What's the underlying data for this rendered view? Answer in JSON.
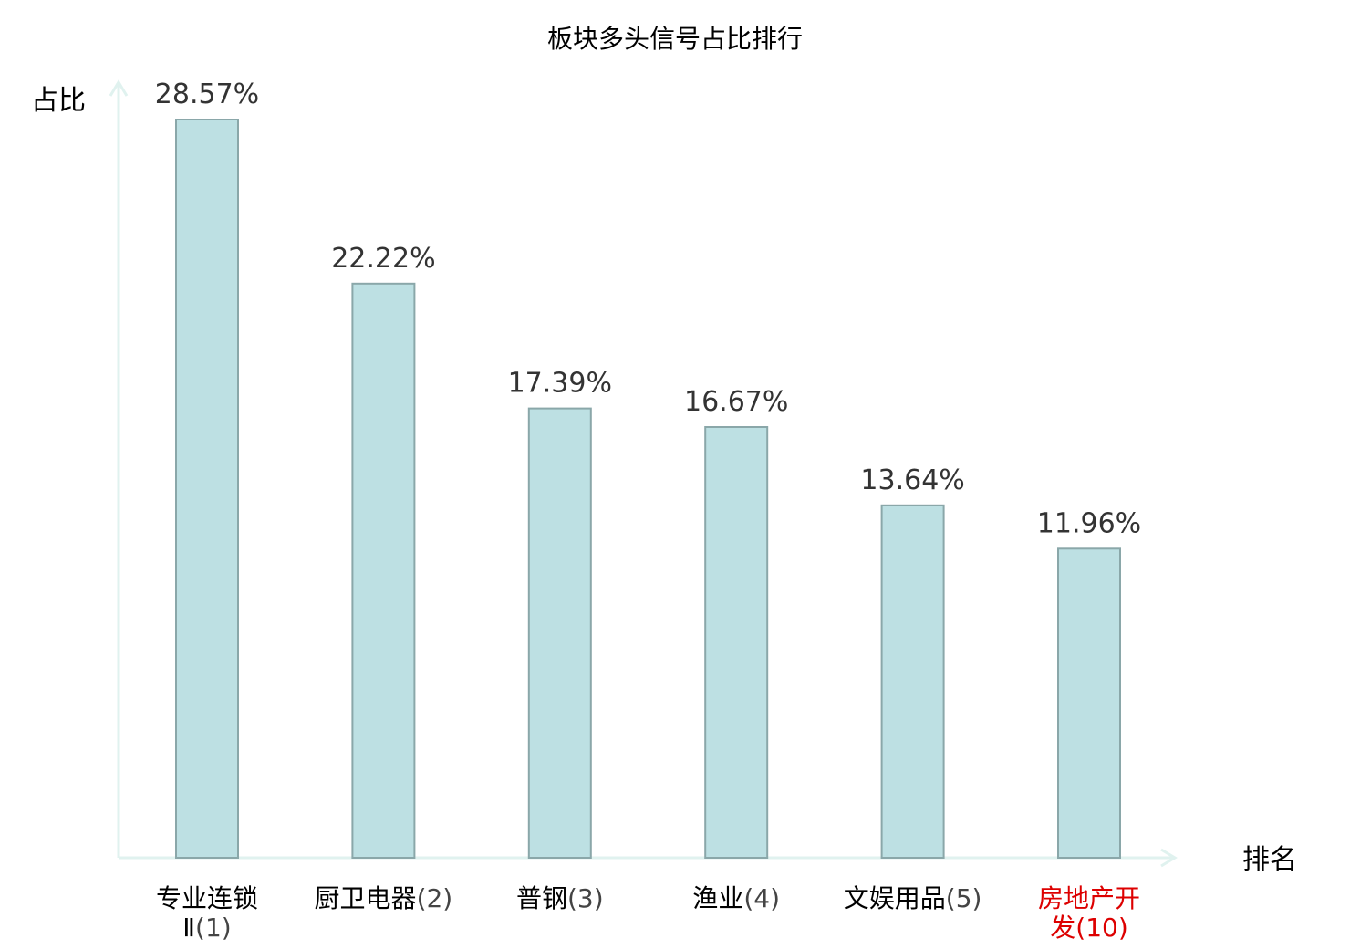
{
  "chart_data": {
    "type": "bar",
    "title": "板块多头信号占比排行",
    "ylabel": "占比",
    "xlabel": "排名",
    "ylim": [
      0,
      30
    ],
    "grid": false,
    "legend": "none",
    "categories": [
      {
        "name": "专业连锁Ⅱ",
        "rank": "(1)",
        "highlight": false
      },
      {
        "name": "厨卫电器",
        "rank": "(2)",
        "highlight": false
      },
      {
        "name": "普钢",
        "rank": "(3)",
        "highlight": false
      },
      {
        "name": "渔业",
        "rank": "(4)",
        "highlight": false
      },
      {
        "name": "文娱用品",
        "rank": "(5)",
        "highlight": false
      },
      {
        "name": "房地产开发",
        "rank": "(10)",
        "highlight": true
      }
    ],
    "values": [
      28.57,
      22.22,
      17.39,
      16.67,
      13.64,
      11.96
    ],
    "value_labels": [
      "28.57%",
      "22.22%",
      "17.39%",
      "16.67%",
      "13.64%",
      "11.96%"
    ],
    "colors": {
      "bar_fill": "#bde0e3",
      "bar_stroke": "#8aa7a9",
      "axis": "#e0f2ef",
      "category_text": "#000000",
      "rank_text": "#444444",
      "highlight_text": "#dd0000"
    }
  }
}
